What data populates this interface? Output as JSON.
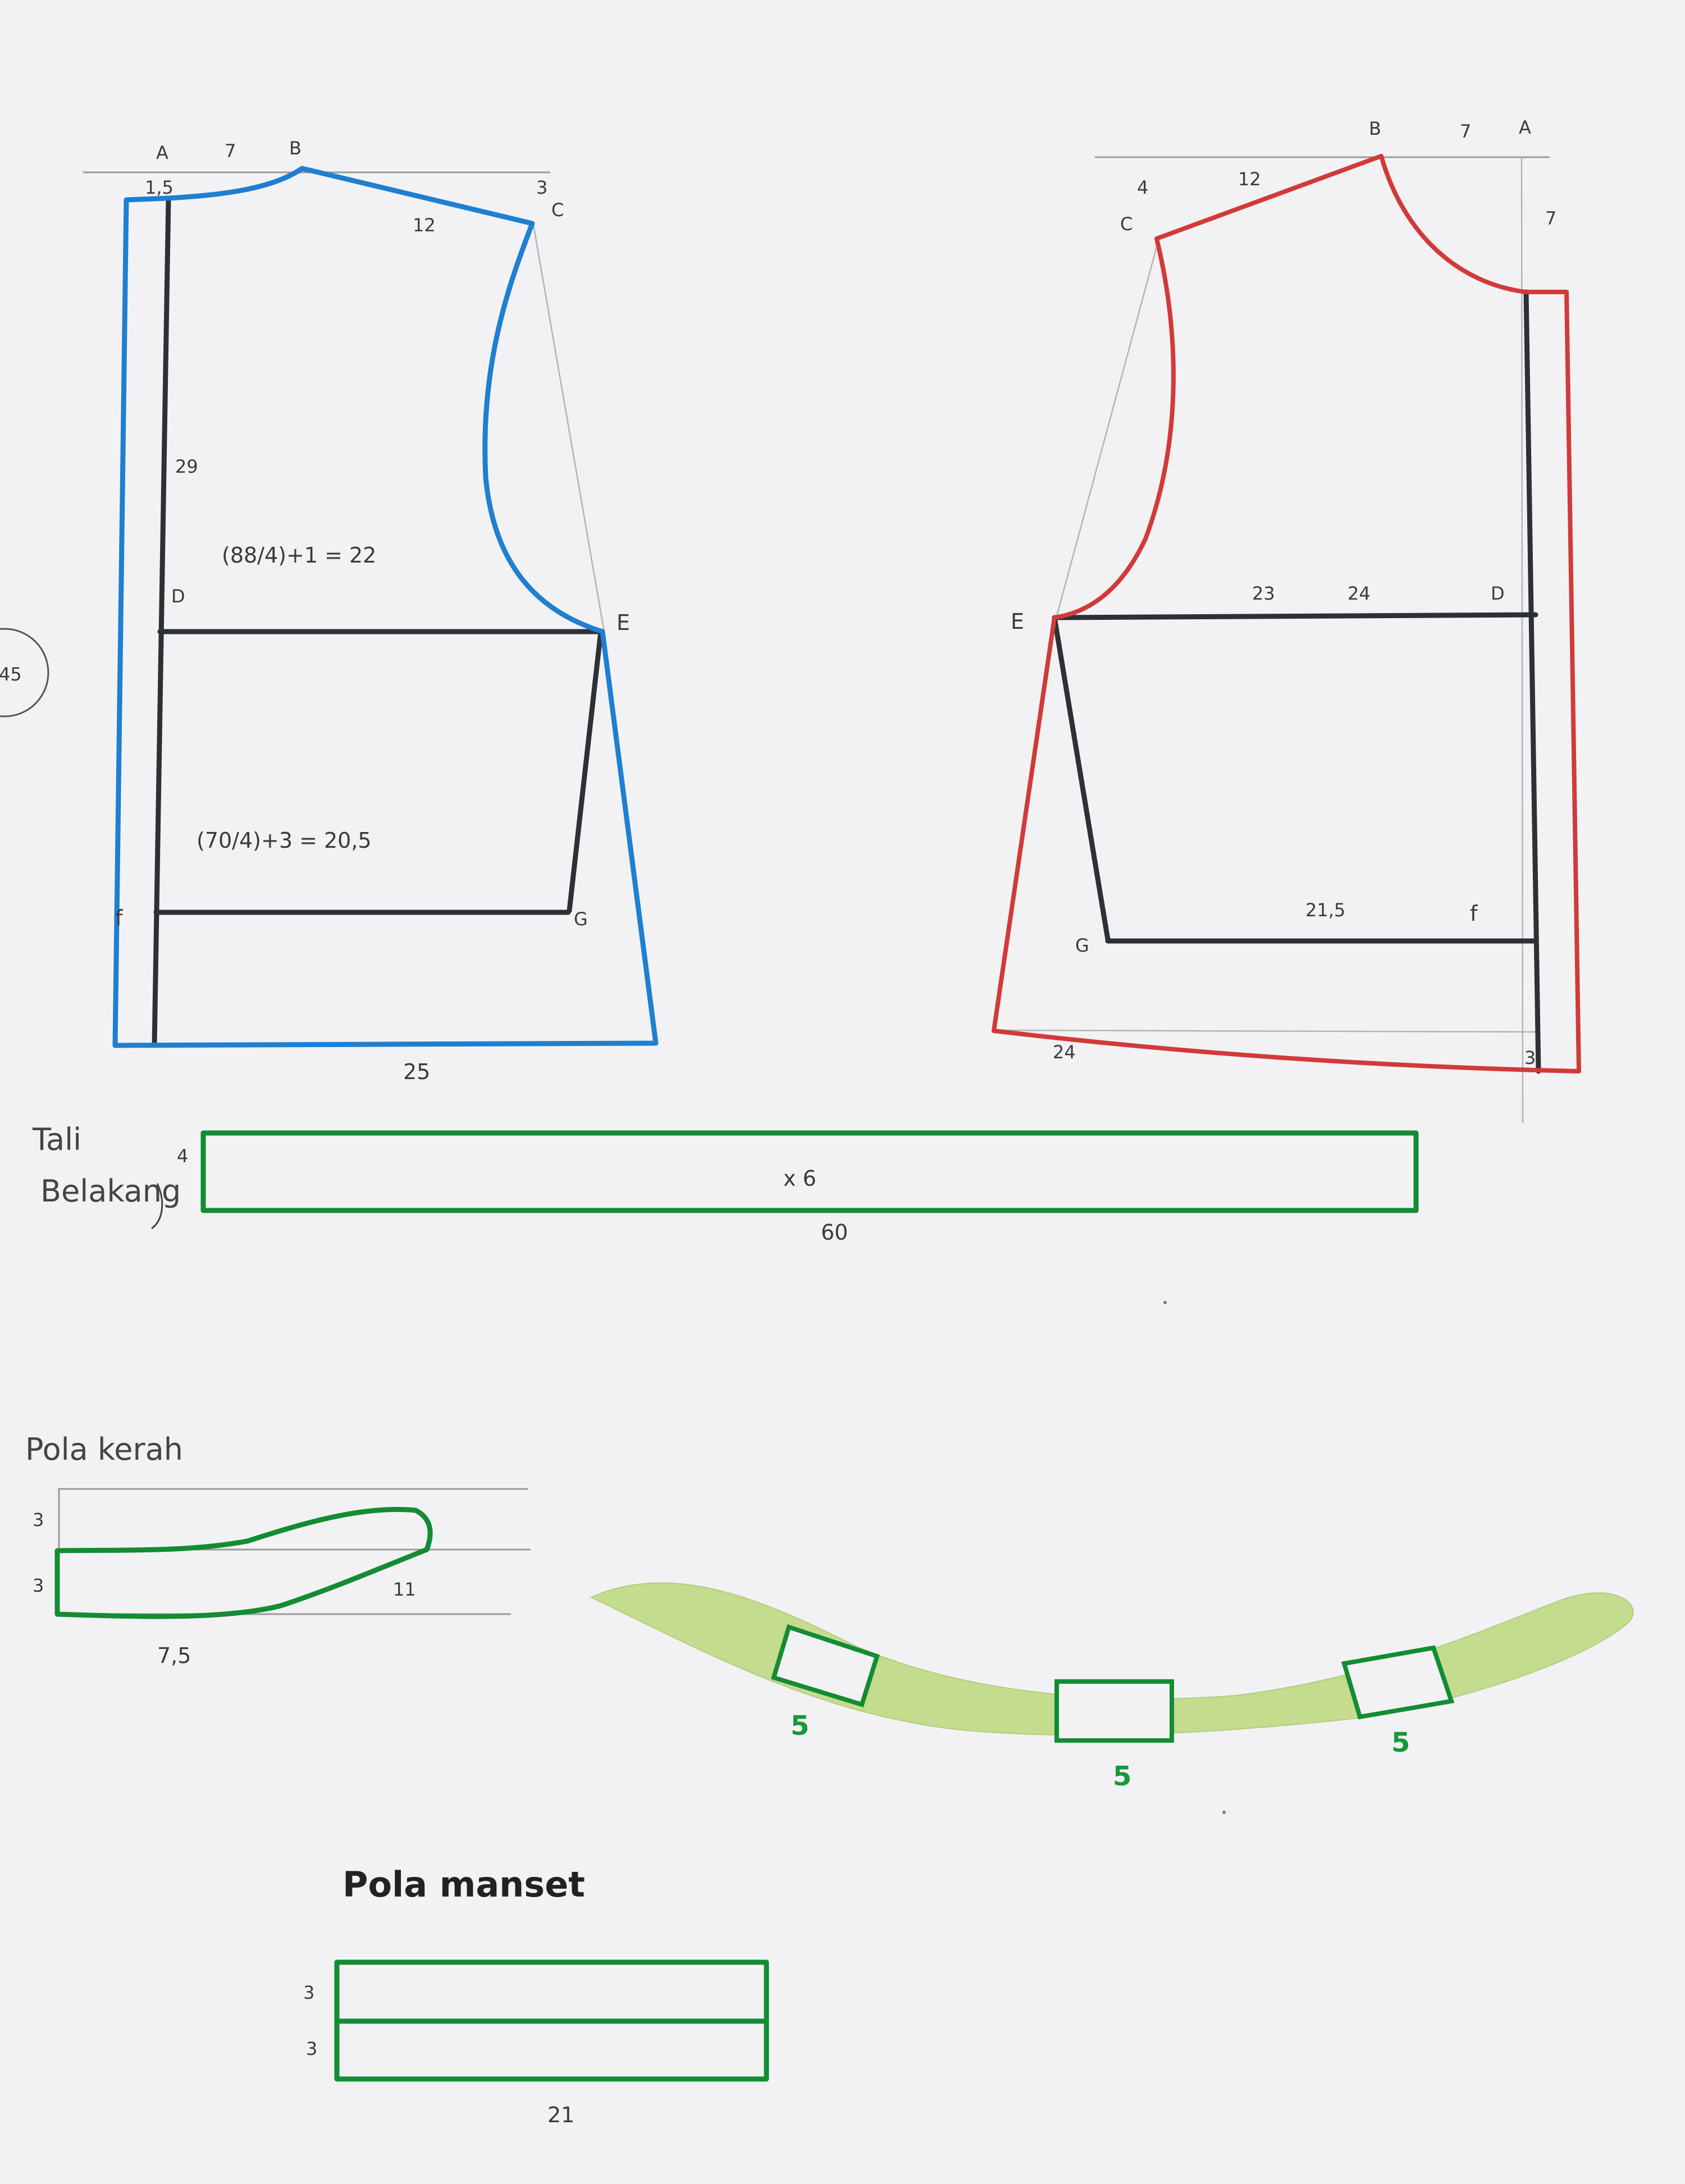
{
  "colors": {
    "paper": "#f2f2f4",
    "front_pattern_outline": "#1f7fd0",
    "back_pattern_outline": "#d23a3a",
    "construction_lines": "#2c3136",
    "small_pattern_outline": "#138c33",
    "paper_collar_sample": "#c3dc8e"
  },
  "side_marker": "45",
  "front_pattern": {
    "point_a": "A",
    "point_b": "B",
    "point_c": "C",
    "point_d": "D",
    "point_e": "E",
    "point_f": "f",
    "point_g": "G",
    "ab_measure": "7",
    "neck_drop": "1,5",
    "shoulder_drop": "3",
    "shoulder_measure": "12",
    "ad_measure": "29",
    "chest_formula": "(88/4)+1 = 22",
    "waist_formula": "(70/4)+3 = 20,5",
    "hem_measure": "25"
  },
  "back_pattern": {
    "point_a": "A",
    "point_b": "B",
    "point_c": "C",
    "point_d": "D",
    "point_e": "E",
    "point_f": "f",
    "point_g": "G",
    "ab_measure": "7",
    "neck_depth": "7",
    "shoulder_drop": "4",
    "shoulder_measure": "12",
    "chest_inner": "23",
    "chest_measure": "24",
    "waist_measure": "21,5",
    "hem_measure": "24",
    "hem_drop": "3"
  },
  "tali_belakang": {
    "title_line1": "Tali",
    "title_line2": "Belakang",
    "width": "4",
    "quantity": "x 6",
    "length": "60"
  },
  "pola_kerah": {
    "title": "Pola kerah",
    "top_height": "3",
    "bottom_height": "3",
    "tip_length": "11",
    "base_length": "7,5"
  },
  "paper_collar": {
    "window_labels": [
      "5",
      "5",
      "5"
    ]
  },
  "pola_manset": {
    "title": "Pola manset",
    "top_height": "3",
    "bottom_height": "3",
    "length": "21"
  }
}
